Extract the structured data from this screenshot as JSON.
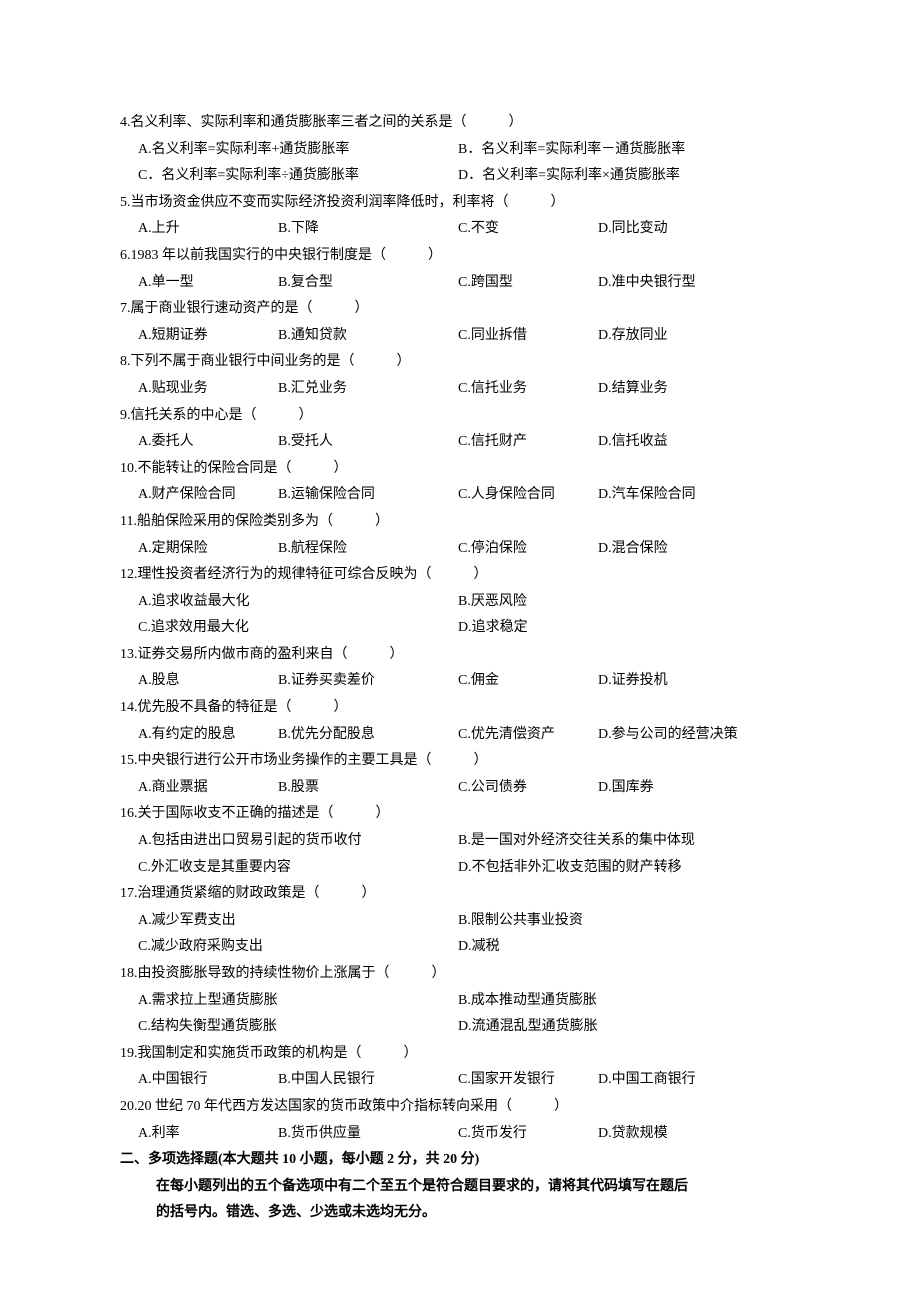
{
  "q4": {
    "text": "4.名义利率、实际利率和通货膨胀率三者之间的关系是（　　　）",
    "A": "A.名义利率=实际利率+通货膨胀率",
    "B": "B．名义利率=实际利率－通货膨胀率",
    "C": "C．名义利率=实际利率÷通货膨胀率",
    "D": "D．名义利率=实际利率×通货膨胀率"
  },
  "q5": {
    "text": "5.当市场资金供应不变而实际经济投资利润率降低时，利率将（　　　）",
    "A": "A.上升",
    "B": "B.下降",
    "C": "C.不变",
    "D": "D.同比变动"
  },
  "q6": {
    "text": "6.1983 年以前我国实行的中央银行制度是（　　　）",
    "A": "A.单一型",
    "B": "B.复合型",
    "C": "C.跨国型",
    "D": "D.准中央银行型"
  },
  "q7": {
    "text": "7.属于商业银行速动资产的是（　　　）",
    "A": "A.短期证券",
    "B": "B.通知贷款",
    "C": "C.同业拆借",
    "D": "D.存放同业"
  },
  "q8": {
    "text": "8.下列不属于商业银行中间业务的是（　　　）",
    "A": "A.贴现业务",
    "B": "B.汇兑业务",
    "C": "C.信托业务",
    "D": "D.结算业务"
  },
  "q9": {
    "text": "9.信托关系的中心是（　　　）",
    "A": "A.委托人",
    "B": "B.受托人",
    "C": "C.信托财产",
    "D": "D.信托收益"
  },
  "q10": {
    "text": "10.不能转让的保险合同是（　　　）",
    "A": "A.财产保险合同",
    "B": "B.运输保险合同",
    "C": "C.人身保险合同",
    "D": "D.汽车保险合同"
  },
  "q11": {
    "text": "11.船舶保险采用的保险类别多为（　　　）",
    "A": "A.定期保险",
    "B": "B.航程保险",
    "C": "C.停泊保险",
    "D": "D.混合保险"
  },
  "q12": {
    "text": "12.理性投资者经济行为的规律特征可综合反映为（　　　）",
    "A": "A.追求收益最大化",
    "B": "B.厌恶风险",
    "C": "C.追求效用最大化",
    "D": "D.追求稳定"
  },
  "q13": {
    "text": "13.证券交易所内做市商的盈利来自（　　　）",
    "A": "A.股息",
    "B": "B.证券买卖差价",
    "C": "C.佣金",
    "D": "D.证券投机"
  },
  "q14": {
    "text": "14.优先股不具备的特征是（　　　）",
    "A": "A.有约定的股息",
    "B": "B.优先分配股息",
    "C": "C.优先清偿资产",
    "D": "D.参与公司的经营决策"
  },
  "q15": {
    "text": "15.中央银行进行公开市场业务操作的主要工具是（　　　）",
    "A": "A.商业票据",
    "B": "B.股票",
    "C": "C.公司债券",
    "D": "D.国库券"
  },
  "q16": {
    "text": "16.关于国际收支不正确的描述是（　　　）",
    "A": "A.包括由进出口贸易引起的货币收付",
    "B": "B.是一国对外经济交往关系的集中体现",
    "C": "C.外汇收支是其重要内容",
    "D": "D.不包括非外汇收支范围的财产转移"
  },
  "q17": {
    "text": "17.治理通货紧缩的财政政策是（　　　）",
    "A": "A.减少军费支出",
    "B": "B.限制公共事业投资",
    "C": "C.减少政府采购支出",
    "D": "D.减税"
  },
  "q18": {
    "text": "18.由投资膨胀导致的持续性物价上涨属于（　　　）",
    "A": "A.需求拉上型通货膨胀",
    "B": "B.成本推动型通货膨胀",
    "C": "C.结构失衡型通货膨胀",
    "D": "D.流通混乱型通货膨胀"
  },
  "q19": {
    "text": "19.我国制定和实施货币政策的机构是（　　　）",
    "A": "A.中国银行",
    "B": "B.中国人民银行",
    "C": "C.国家开发银行",
    "D": "D.中国工商银行"
  },
  "q20": {
    "text": "20.20 世纪 70 年代西方发达国家的货币政策中介指标转向采用（　　　）",
    "A": "A.利率",
    "B": "B.货币供应量",
    "C": "C.货币发行",
    "D": "D.贷款规模"
  },
  "section2": {
    "header": "二、多项选择题(本大题共 10 小题，每小题 2 分，共 20 分)",
    "note1": "在每小题列出的五个备选项中有二个至五个是符合题目要求的，请将其代码填写在题后",
    "note2": "的括号内。错选、多选、少选或未选均无分。"
  }
}
